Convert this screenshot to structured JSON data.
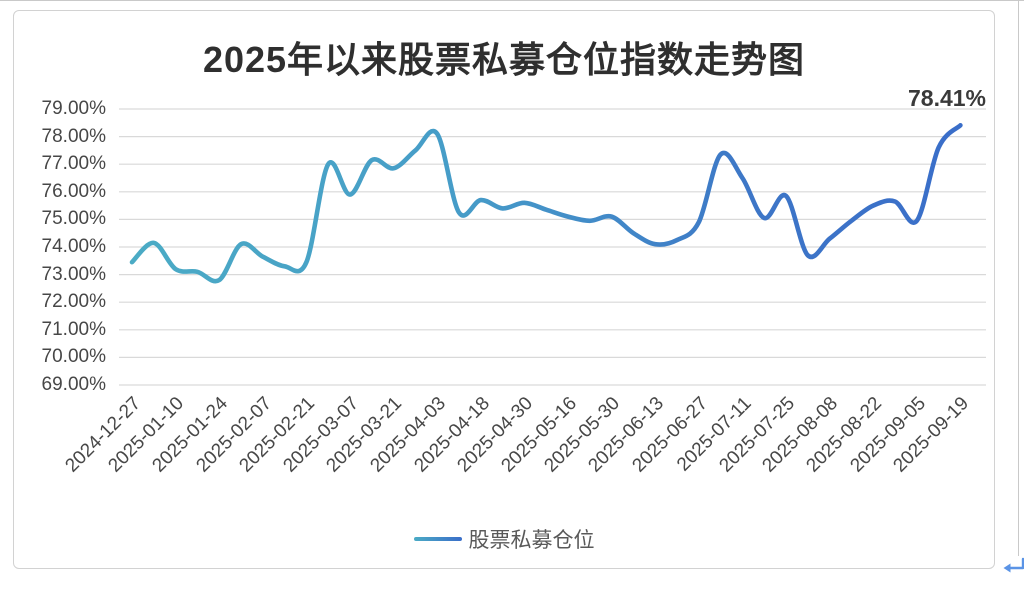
{
  "chart_data": {
    "type": "line",
    "title": "2025年以来股票私募仓位指数走势图",
    "series_name": "股票私募仓位",
    "legend_position": "bottom",
    "grid": true,
    "grid_color": "#d9d9d9",
    "end_label": "78.41%",
    "y_axis": {
      "min": 69,
      "max": 79,
      "tick_labels": [
        "79.00%",
        "78.00%",
        "77.00%",
        "76.00%",
        "75.00%",
        "74.00%",
        "73.00%",
        "72.00%",
        "71.00%",
        "70.00%",
        "69.00%"
      ]
    },
    "x_axis": {
      "tick_labels": [
        "2024-12-27",
        "2025-01-10",
        "2025-01-24",
        "2025-02-07",
        "2025-02-21",
        "2025-03-07",
        "2025-03-21",
        "2025-04-03",
        "2025-04-18",
        "2025-04-30",
        "2025-05-16",
        "2025-05-30",
        "2025-06-13",
        "2025-06-27",
        "2025-07-11",
        "2025-07-25",
        "2025-08-08",
        "2025-08-22",
        "2025-09-05",
        "2025-09-19"
      ],
      "points_per_tick": 2
    },
    "values": [
      73.45,
      74.15,
      73.2,
      73.1,
      72.8,
      74.1,
      73.65,
      73.3,
      73.45,
      77.0,
      75.9,
      77.15,
      76.85,
      77.5,
      78.1,
      75.25,
      75.7,
      75.4,
      75.6,
      75.35,
      75.1,
      74.95,
      75.1,
      74.5,
      74.1,
      74.25,
      74.9,
      77.35,
      76.5,
      75.05,
      75.85,
      73.7,
      74.3,
      74.95,
      75.5,
      75.65,
      74.95,
      77.6,
      78.41
    ],
    "line_gradient": [
      {
        "offset": 0,
        "color": "#4babc5"
      },
      {
        "offset": 0.4,
        "color": "#469cc8"
      },
      {
        "offset": 0.75,
        "color": "#3d76c7"
      },
      {
        "offset": 1,
        "color": "#3a6ec9"
      }
    ],
    "line_width": 4.6
  },
  "decorations": {
    "return_arrow_color": "#5b94e6"
  }
}
